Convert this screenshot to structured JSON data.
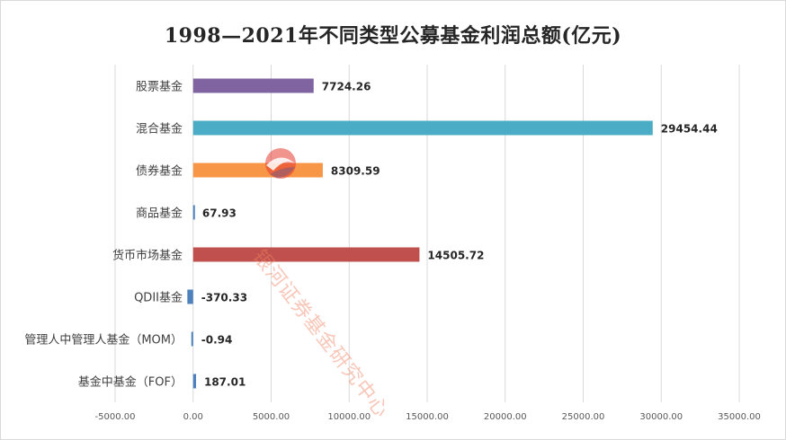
{
  "chart_data": {
    "type": "bar",
    "orientation": "horizontal",
    "title": "1998—2021年不同类型公募基金利润总额(亿元)",
    "categories": [
      "股票基金",
      "混合基金",
      "债券基金",
      "商品基金",
      "货币市场基金",
      "QDII基金",
      "管理人中管理人基金（MOM）",
      "基金中基金（FOF）"
    ],
    "values": [
      7724.26,
      29454.44,
      8309.59,
      67.93,
      14505.72,
      -370.33,
      -0.94,
      187.01
    ],
    "value_labels": [
      "7724.26",
      "29454.44",
      "8309.59",
      "67.93",
      "14505.72",
      "-370.33",
      "-0.94",
      "187.01"
    ],
    "colors": [
      "#8064a2",
      "#4bacc6",
      "#f79646",
      "#4f81bd",
      "#c0504d",
      "#4f81bd",
      "#4f81bd",
      "#4f81bd"
    ],
    "xlim": [
      -5000,
      35000
    ],
    "xticks": [
      -5000,
      0,
      5000,
      10000,
      15000,
      20000,
      25000,
      30000,
      35000
    ],
    "xtick_labels": [
      "-5000.00",
      "0.00",
      "5000.00",
      "10000.00",
      "15000.00",
      "20000.00",
      "25000.00",
      "30000.00",
      "35000.00"
    ],
    "grid": true,
    "xlabel": "",
    "ylabel": ""
  },
  "watermark": {
    "text": "银河证券基金研究中心",
    "icon": "galaxy-logo-icon"
  }
}
